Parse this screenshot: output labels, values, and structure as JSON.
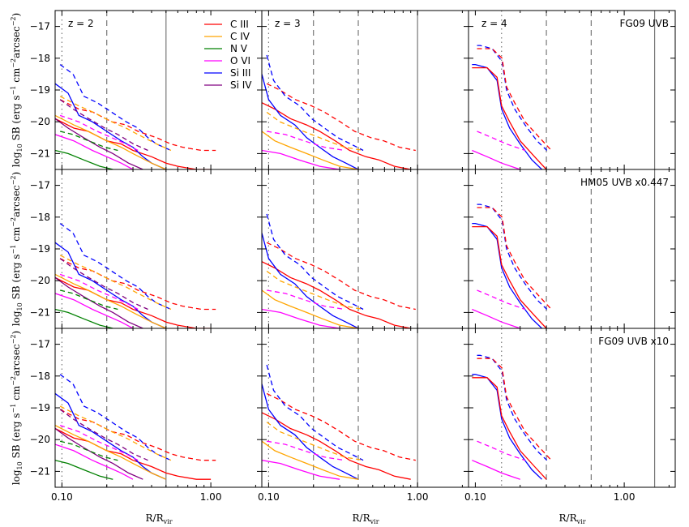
{
  "figure": {
    "xlabel": "R/R_vir",
    "ylabel": "log10 SB (erg s^-1 cm^-2 arcsec^-2)",
    "xlim": [
      0.09,
      2.2
    ],
    "ylim": [
      -21.5,
      -16.5
    ],
    "x_scale": "log",
    "x_tick_labels": [
      "0.10",
      "1.00"
    ],
    "y_tick_labels": [
      "-17",
      "-18",
      "-19",
      "-20",
      "-21"
    ],
    "columns": [
      {
        "label": "z = 2",
        "rvir_lines": [
          0.1,
          0.2,
          0.5
        ]
      },
      {
        "label": "z = 3",
        "rvir_lines": [
          0.1,
          0.2,
          0.4,
          1.0
        ]
      },
      {
        "label": "z = 4",
        "rvir_lines": [
          0.15,
          0.3,
          0.6,
          1.6
        ]
      }
    ],
    "rows": [
      {
        "label": "FG09 UVB"
      },
      {
        "label": "HM05 UVB x0.447"
      },
      {
        "label": "FG09 UVB x10"
      }
    ],
    "legend": [
      {
        "name": "C III",
        "color": "#ff0000"
      },
      {
        "name": "C IV",
        "color": "#ffa500"
      },
      {
        "name": "N V",
        "color": "#008000"
      },
      {
        "name": "O VI",
        "color": "#ff00ff"
      },
      {
        "name": "Si III",
        "color": "#0000ff"
      },
      {
        "name": "Si IV",
        "color": "#800080"
      }
    ]
  },
  "chart_data": [
    {
      "type": "line",
      "panel": "z = 2, FG09 UVB",
      "series": [
        {
          "name": "C III",
          "x": [
            0.09,
            0.12,
            0.15,
            0.2,
            0.25,
            0.3,
            0.4,
            0.5,
            0.6,
            0.8,
            1.0
          ],
          "y": [
            -19.9,
            -20.2,
            -20.3,
            -20.6,
            -20.7,
            -20.9,
            -21.1,
            -21.3,
            -21.4,
            -21.5,
            -21.5
          ]
        },
        {
          "name": "Si III",
          "x": [
            0.09,
            0.11,
            0.13,
            0.16,
            0.2,
            0.25,
            0.3,
            0.35,
            0.4,
            0.5
          ],
          "y": [
            -18.8,
            -19.1,
            -19.8,
            -20.0,
            -20.3,
            -20.6,
            -20.8,
            -21.1,
            -21.3,
            -21.5
          ]
        },
        {
          "name": "C IV",
          "x": [
            0.09,
            0.12,
            0.15,
            0.2,
            0.25,
            0.3,
            0.4,
            0.5
          ],
          "y": [
            -19.8,
            -20.1,
            -20.3,
            -20.6,
            -20.8,
            -21.0,
            -21.3,
            -21.5
          ]
        },
        {
          "name": "Si IV",
          "x": [
            0.09,
            0.11,
            0.14,
            0.18,
            0.22,
            0.28,
            0.35
          ],
          "y": [
            -19.9,
            -20.2,
            -20.5,
            -20.8,
            -21.0,
            -21.3,
            -21.5
          ]
        },
        {
          "name": "O VI",
          "x": [
            0.09,
            0.12,
            0.16,
            0.2,
            0.25,
            0.3
          ],
          "y": [
            -20.4,
            -20.6,
            -20.9,
            -21.1,
            -21.3,
            -21.5
          ]
        },
        {
          "name": "N V",
          "x": [
            0.09,
            0.11,
            0.14,
            0.18,
            0.22
          ],
          "y": [
            -20.9,
            -21.0,
            -21.2,
            -21.4,
            -21.5
          ]
        }
      ]
    },
    {
      "type": "line",
      "panel": "z = 3, FG09 UVB",
      "series": [
        {
          "name": "C III",
          "x": [
            0.09,
            0.11,
            0.14,
            0.18,
            0.22,
            0.28,
            0.35,
            0.45,
            0.55,
            0.7,
            0.9
          ],
          "y": [
            -19.4,
            -19.6,
            -19.9,
            -20.1,
            -20.3,
            -20.6,
            -20.9,
            -21.1,
            -21.2,
            -21.4,
            -21.5
          ]
        },
        {
          "name": "Si III",
          "x": [
            0.09,
            0.1,
            0.12,
            0.15,
            0.18,
            0.22,
            0.27,
            0.33,
            0.4
          ],
          "y": [
            -18.5,
            -19.3,
            -19.8,
            -20.1,
            -20.5,
            -20.8,
            -21.1,
            -21.3,
            -21.5
          ]
        },
        {
          "name": "C IV",
          "x": [
            0.09,
            0.11,
            0.14,
            0.18,
            0.23,
            0.3,
            0.4
          ],
          "y": [
            -20.3,
            -20.6,
            -20.8,
            -21.0,
            -21.2,
            -21.4,
            -21.5
          ]
        },
        {
          "name": "O VI",
          "x": [
            0.09,
            0.12,
            0.16,
            0.22,
            0.3
          ],
          "y": [
            -20.9,
            -21.0,
            -21.2,
            -21.4,
            -21.5
          ]
        }
      ]
    },
    {
      "type": "line",
      "panel": "z = 4, FG09 UVB",
      "series": [
        {
          "name": "Si III",
          "x": [
            0.095,
            0.1,
            0.12,
            0.14,
            0.15,
            0.17,
            0.2,
            0.24,
            0.28
          ],
          "y": [
            -18.2,
            -18.2,
            -18.3,
            -18.7,
            -19.6,
            -20.2,
            -20.7,
            -21.2,
            -21.5
          ]
        },
        {
          "name": "C III",
          "x": [
            0.095,
            0.12,
            0.14,
            0.15,
            0.17,
            0.2,
            0.25,
            0.3
          ],
          "y": [
            -18.3,
            -18.3,
            -18.6,
            -19.5,
            -20.0,
            -20.6,
            -21.1,
            -21.5
          ]
        },
        {
          "name": "O VI",
          "x": [
            0.095,
            0.12,
            0.15,
            0.2
          ],
          "y": [
            -20.9,
            -21.1,
            -21.3,
            -21.5
          ]
        }
      ]
    }
  ]
}
